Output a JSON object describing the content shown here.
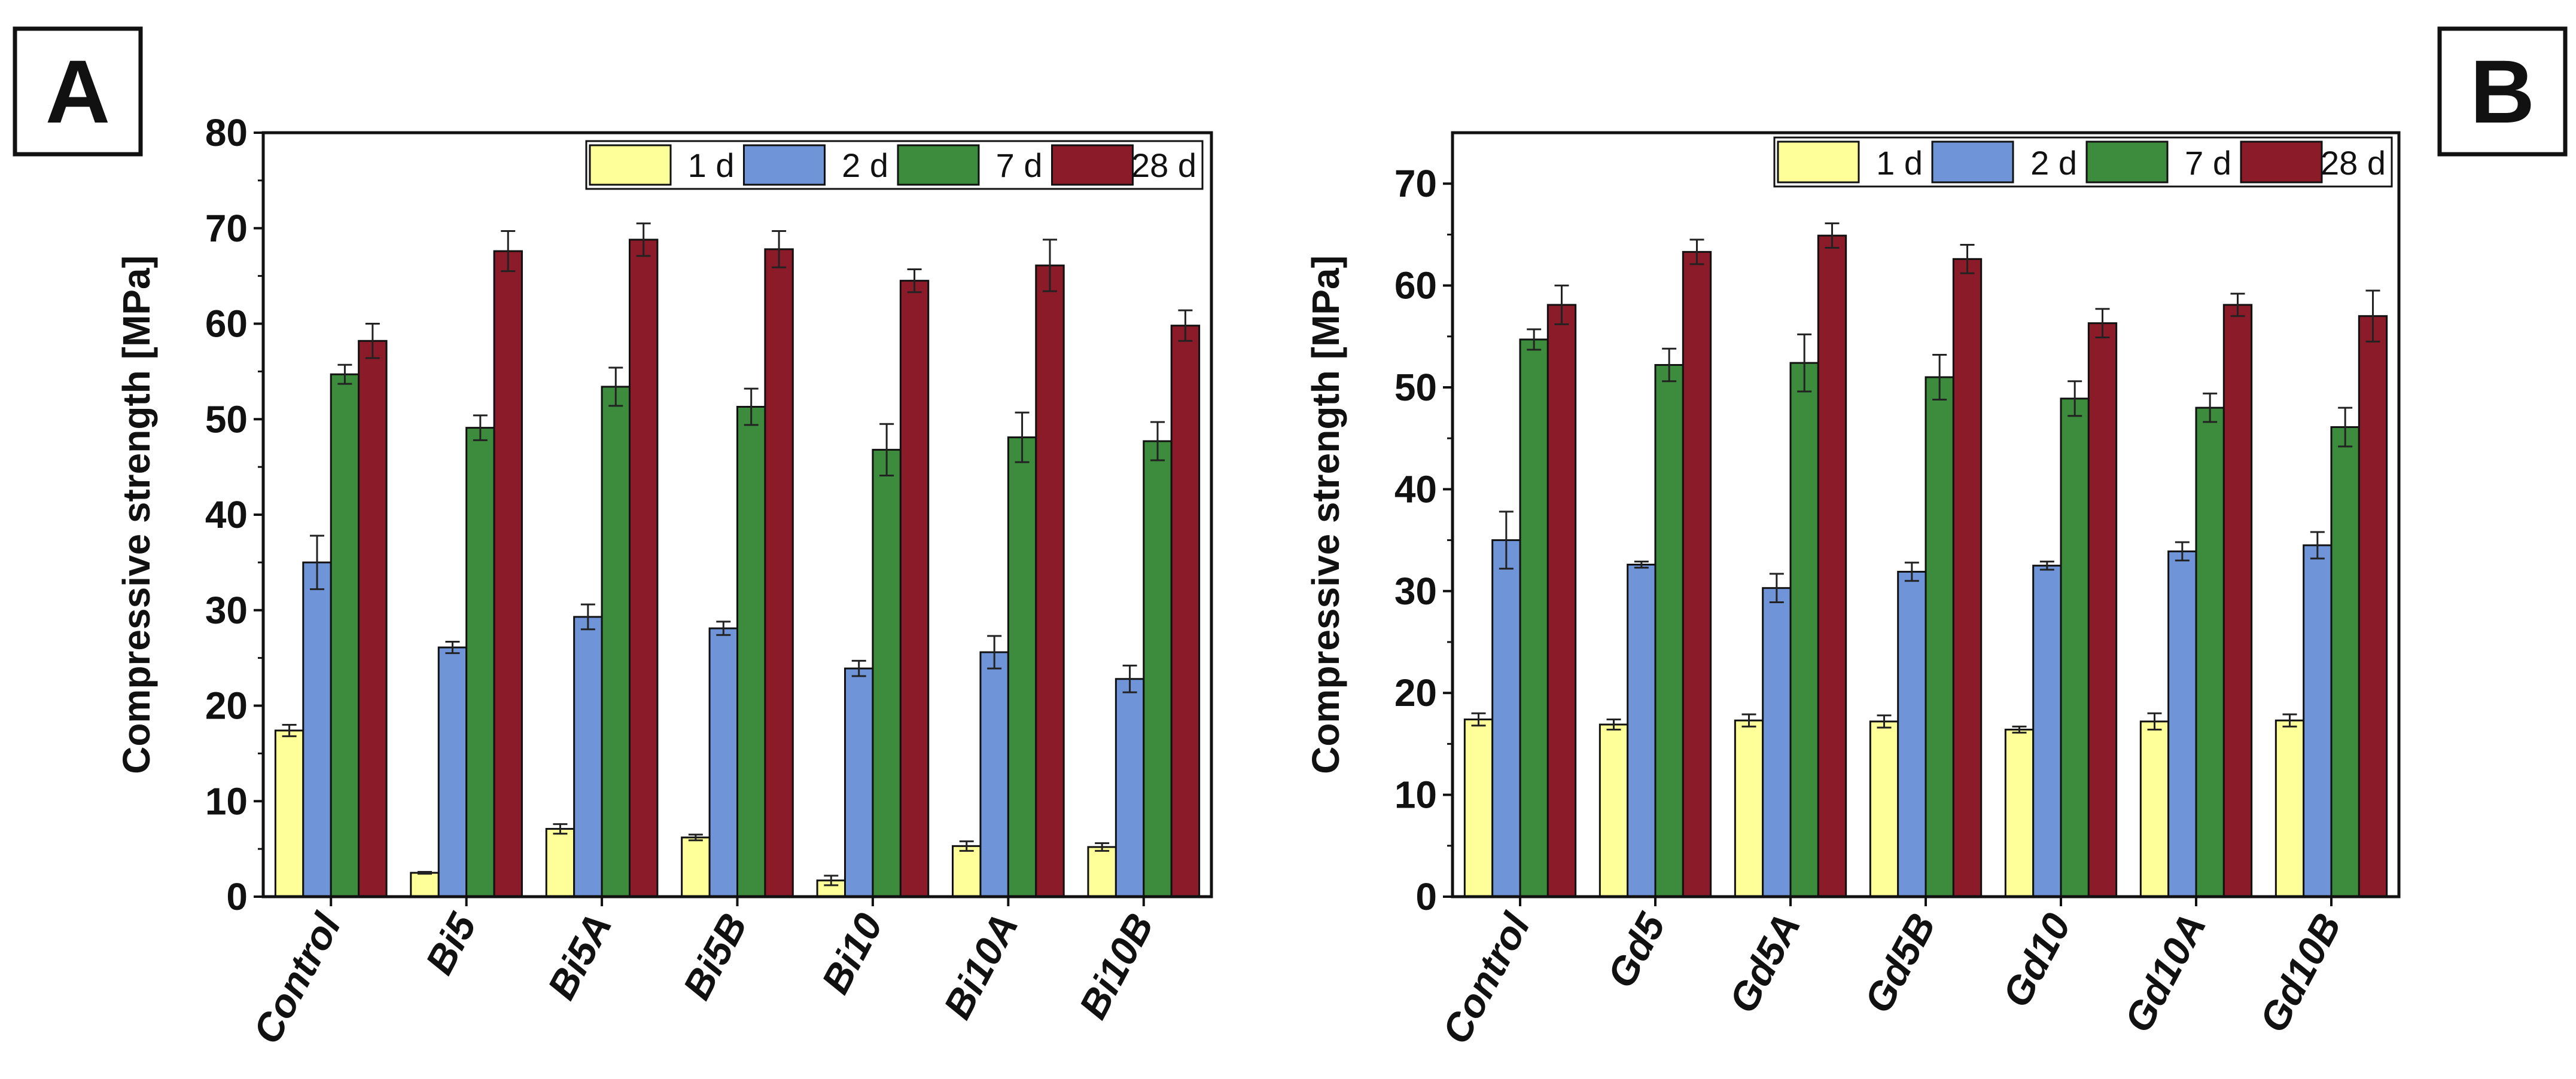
{
  "figure": {
    "panels": [
      "A",
      "B"
    ]
  },
  "chart_data": [
    {
      "panel": "A",
      "type": "bar",
      "ylabel": "Compressive strength [MPa]",
      "xlabel": "",
      "ylim": [
        0,
        80
      ],
      "yticks": [
        0,
        10,
        20,
        30,
        40,
        50,
        60,
        70,
        80
      ],
      "categories": [
        "Control",
        "Bi5",
        "Bi5A",
        "Bi5B",
        "Bi10",
        "Bi10A",
        "Bi10B"
      ],
      "legend_position": "top-right",
      "series": [
        {
          "name": "1 d",
          "color": "#FFFF99",
          "values": [
            17.4,
            2.5,
            7.1,
            6.2,
            1.7,
            5.3,
            5.2
          ],
          "errors": [
            0.6,
            0.1,
            0.5,
            0.3,
            0.5,
            0.5,
            0.4
          ]
        },
        {
          "name": "2 d",
          "color": "#6F95D8",
          "values": [
            35.0,
            26.1,
            29.3,
            28.1,
            23.9,
            25.6,
            22.8
          ],
          "errors": [
            2.8,
            0.6,
            1.3,
            0.7,
            0.8,
            1.7,
            1.4
          ]
        },
        {
          "name": "7 d",
          "color": "#3D8C3D",
          "values": [
            54.7,
            49.1,
            53.4,
            51.3,
            46.8,
            48.1,
            47.7
          ],
          "errors": [
            1.0,
            1.3,
            2.0,
            1.9,
            2.7,
            2.6,
            2.0
          ]
        },
        {
          "name": "28 d",
          "color": "#8C1B2A",
          "values": [
            58.2,
            67.6,
            68.8,
            67.8,
            64.5,
            66.1,
            59.8
          ],
          "errors": [
            1.8,
            2.1,
            1.7,
            1.9,
            1.2,
            2.7,
            1.6
          ]
        }
      ]
    },
    {
      "panel": "B",
      "type": "bar",
      "ylabel": "Compressive strength [MPa]",
      "xlabel": "",
      "ylim": [
        0,
        75
      ],
      "yticks": [
        0,
        10,
        20,
        30,
        40,
        50,
        60,
        70
      ],
      "categories": [
        "Control",
        "Gd5",
        "Gd5A",
        "Gd5B",
        "Gd10",
        "Gd10A",
        "Gd10B"
      ],
      "legend_position": "top-right",
      "series": [
        {
          "name": "1 d",
          "color": "#FFFF99",
          "values": [
            17.4,
            16.9,
            17.3,
            17.2,
            16.4,
            17.2,
            17.3
          ],
          "errors": [
            0.6,
            0.5,
            0.6,
            0.6,
            0.3,
            0.8,
            0.6
          ]
        },
        {
          "name": "2 d",
          "color": "#6F95D8",
          "values": [
            35.0,
            32.6,
            30.3,
            31.9,
            32.5,
            33.9,
            34.5
          ],
          "errors": [
            2.8,
            0.3,
            1.4,
            0.9,
            0.4,
            0.9,
            1.3
          ]
        },
        {
          "name": "7 d",
          "color": "#3D8C3D",
          "values": [
            54.7,
            52.2,
            52.4,
            51.0,
            48.9,
            48.0,
            46.1
          ],
          "errors": [
            1.0,
            1.6,
            2.8,
            2.2,
            1.7,
            1.4,
            1.9
          ]
        },
        {
          "name": "28 d",
          "color": "#8C1B2A",
          "values": [
            58.1,
            63.3,
            64.9,
            62.6,
            56.3,
            58.1,
            57.0
          ],
          "errors": [
            1.9,
            1.2,
            1.2,
            1.4,
            1.4,
            1.1,
            2.5
          ]
        }
      ]
    }
  ]
}
